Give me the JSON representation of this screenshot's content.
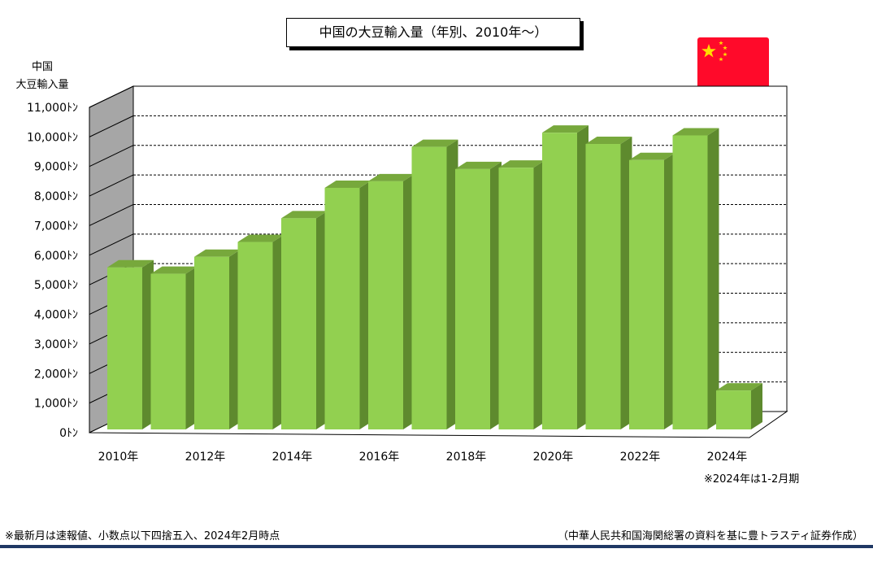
{
  "title": "中国の大豆輸入量（年別、2010年～）",
  "ylabel_lines": [
    "中国",
    "大豆輸入量"
  ],
  "note_period": "※2024年は1-2月期",
  "footer": {
    "left": "※最新月は速報値、小数点以下四捨五入、2024年2月時点",
    "right": "（中華人民共和国海関総署の資料を基に豊トラスティ証券作成）"
  },
  "flag_icon": "china-flag-icon",
  "colors": {
    "bar_front": "#92d050",
    "bar_top": "#77a83c",
    "bar_side": "#5e8a2e",
    "wall_side": "#a6a6a6",
    "footer_rule": "#1f3864"
  },
  "chart_data": {
    "type": "bar",
    "three_d": true,
    "categories": [
      "2010",
      "2011",
      "2012",
      "2013",
      "2014",
      "2015",
      "2016",
      "2017",
      "2018",
      "2019",
      "2020",
      "2021",
      "2022",
      "2023",
      "2024"
    ],
    "x_tick_labels": [
      "2010年",
      "2012年",
      "2014年",
      "2016年",
      "2018年",
      "2020年",
      "2022年",
      "2024年"
    ],
    "values": [
      5480,
      5264,
      5838,
      6338,
      7140,
      8169,
      8391,
      9553,
      8803,
      8851,
      10033,
      9652,
      9108,
      9941,
      1317
    ],
    "y_tick_labels": [
      "0ﾄﾝ",
      "1,000ﾄﾝ",
      "2,000ﾄﾝ",
      "3,000ﾄﾝ",
      "4,000ﾄﾝ",
      "5,000ﾄﾝ",
      "6,000ﾄﾝ",
      "7,000ﾄﾝ",
      "8,000ﾄﾝ",
      "9,000ﾄﾝ",
      "10,000ﾄﾝ",
      "11,000ﾄﾝ"
    ],
    "ylim": [
      0,
      11000
    ],
    "grid": true
  }
}
